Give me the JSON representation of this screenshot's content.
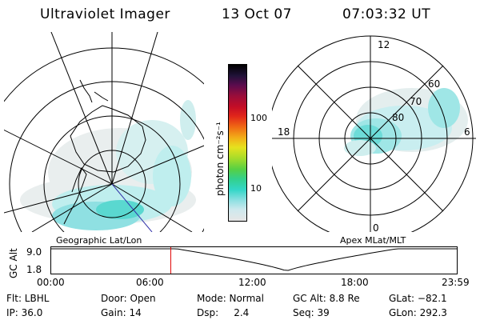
{
  "header": {
    "title": "Ultraviolet Imager",
    "date": "13 Oct 07",
    "time": "07:03:32 UT"
  },
  "colorbar": {
    "unit_label": "photon cm⁻²s⁻¹",
    "tick_labels": [
      "100",
      "10"
    ],
    "colors": [
      "#e6e6e6",
      "#cfe9ee",
      "#8fe0e2",
      "#33d6c7",
      "#33d08a",
      "#56d044",
      "#a6dc2a",
      "#e6e21e",
      "#f2b018",
      "#f06a14",
      "#e1261a",
      "#c40d26",
      "#9a0d3a",
      "#5a0c4e",
      "#201238",
      "#000000"
    ]
  },
  "left_panel": {
    "label": "Geographic Lat/Lon"
  },
  "right_panel": {
    "label": "Apex MLat/MLT",
    "mlt_labels": [
      "12",
      "18",
      "6",
      "0"
    ],
    "mlat_labels": [
      "60",
      "70",
      "80"
    ]
  },
  "timeline": {
    "axis_label": "GC Alt",
    "y_labels": [
      "9.0",
      "1.8"
    ],
    "x_labels": [
      "00:00",
      "06:00",
      "12:00",
      "18:00",
      "23:59"
    ],
    "current_time_hours": 7.06,
    "marker_color": "#e00000"
  },
  "status": {
    "flt": "Flt: LBHL",
    "ip": "IP: 36.0",
    "door": "Door: Open",
    "gain": "Gain: 14",
    "mode": "Mode: Normal",
    "dsp": "Dsp:     2.4",
    "gc_alt": "GC Alt: 8.8 Re",
    "seq": "Seq: 39",
    "glat": "GLat: −82.1",
    "glon": "GLon: 292.3"
  }
}
